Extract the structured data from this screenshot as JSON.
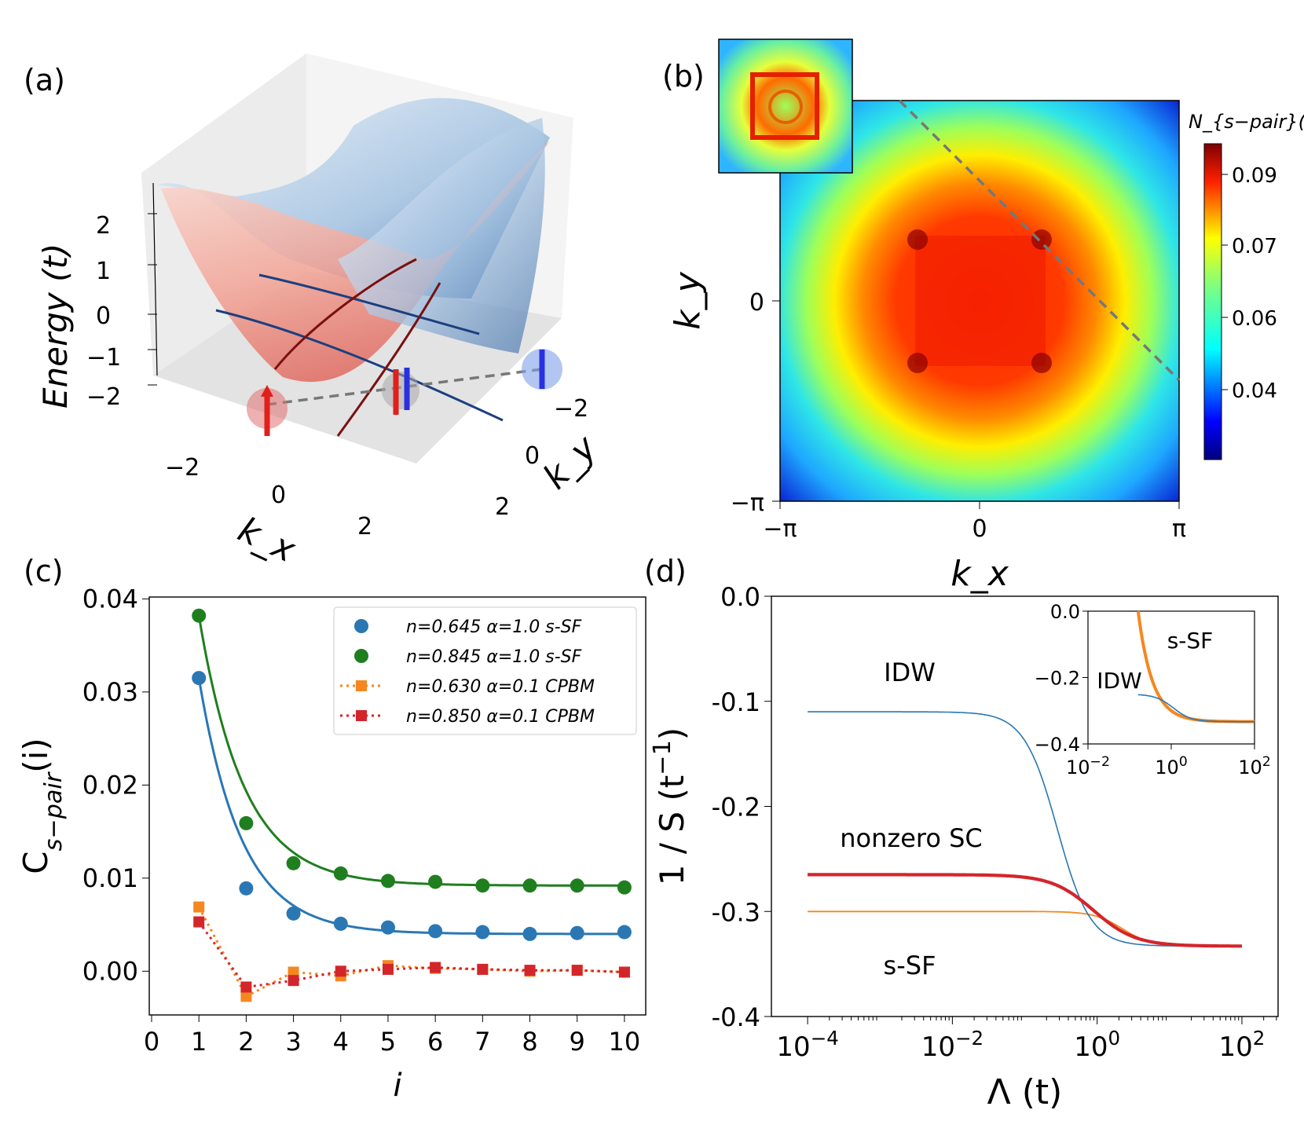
{
  "panels": {
    "a": {
      "label": "(a)",
      "zlabel": "Energy (t)",
      "xlabel": "k_x",
      "ylabel": "k_y",
      "z_ticks": [
        "2",
        "1",
        "0",
        "−1",
        "−2"
      ],
      "x_ticks": [
        "−2",
        "0",
        "2"
      ],
      "y_ticks": [
        "−2",
        "0",
        "2"
      ]
    },
    "b": {
      "label": "(b)",
      "xlabel": "k_x",
      "ylabel": "k_y",
      "x_ticks": [
        "−π",
        "0",
        "π"
      ],
      "y_ticks": [
        "0",
        "−π"
      ],
      "colorbar_label": "N_{s−pair}(k)",
      "colorbar_ticks": [
        "0.09",
        "0.07",
        "0.06",
        "0.04"
      ]
    },
    "c": {
      "label": "(c)"
    },
    "d": {
      "label": "(d)"
    }
  },
  "chart_data": [
    {
      "panel": "c",
      "type": "scatter",
      "xlabel": "i",
      "ylabel": "C_{s−pair}(i)",
      "xlim": [
        -0.05,
        10.45
      ],
      "ylim": [
        -0.0047,
        0.0402
      ],
      "x_ticks": [
        0,
        1,
        2,
        3,
        4,
        5,
        6,
        7,
        8,
        9,
        10
      ],
      "y_ticks": [
        0.0,
        0.01,
        0.02,
        0.03,
        0.04
      ],
      "y_tick_labels": [
        "0.00",
        "0.01",
        "0.02",
        "0.03",
        "0.04"
      ],
      "x": [
        1,
        2,
        3,
        4,
        5,
        6,
        7,
        8,
        9,
        10
      ],
      "series": [
        {
          "name": "n=0.645 α=1.0 s-SF",
          "color": "#2a77b4",
          "marker": "circle",
          "values": [
            0.0315,
            0.0089,
            0.0062,
            0.0051,
            0.0047,
            0.0043,
            0.0042,
            0.004,
            0.0041,
            0.0042
          ],
          "fit": {
            "a": 0.0275,
            "b": 1.1,
            "c": 0.004
          }
        },
        {
          "name": "n=0.845 α=1.0 s-SF",
          "color": "#1f7f1f",
          "marker": "circle",
          "values": [
            0.0382,
            0.0159,
            0.0116,
            0.0105,
            0.0097,
            0.0096,
            0.0092,
            0.0092,
            0.0092,
            0.009
          ],
          "fit": {
            "a": 0.029,
            "b": 1.05,
            "c": 0.0092
          }
        },
        {
          "name": "n=0.630 α=0.1 CPBM",
          "color": "#f5871f",
          "marker": "square",
          "dashed": true,
          "values": [
            0.0069,
            -0.0027,
            -0.0001,
            -0.0005,
            0.0006,
            0.0003,
            0.0002,
            0.0,
            0.0001,
            -0.0001
          ]
        },
        {
          "name": "n=0.850 α=0.1 CPBM",
          "color": "#d3262b",
          "marker": "square",
          "dashed": true,
          "values": [
            0.0053,
            -0.0017,
            -0.001,
            0.0,
            0.0002,
            0.0004,
            0.0002,
            0.0001,
            0.0001,
            -0.0001
          ]
        }
      ],
      "legend": "top-right"
    },
    {
      "panel": "d",
      "type": "line",
      "xscale": "log",
      "xlabel": "Λ (t)",
      "ylabel": "1 / S (t^{−1})",
      "xlim": [
        3.16e-05,
        316
      ],
      "ylim": [
        -0.4,
        0.0
      ],
      "x_tick_labels": [
        "10^{−4}",
        "10^{−2}",
        "10^{0}",
        "10^{2}"
      ],
      "y_tick_labels": [
        "0.0",
        "-0.1",
        "-0.2",
        "-0.3",
        "-0.4"
      ],
      "series": [
        {
          "name": "IDW",
          "color": "#2a77b4",
          "width": 1.6,
          "start": -0.11,
          "end": -0.333,
          "center_log": -0.55,
          "steep": 1.9
        },
        {
          "name": "nonzero SC",
          "color": "#d3262b",
          "width": 4.2,
          "start": -0.265,
          "end": -0.333,
          "center_log": -0.05,
          "steep": 1.5
        },
        {
          "name": "s-SF",
          "color": "#f5871f",
          "width": 1.8,
          "start": -0.3,
          "end": -0.333,
          "center_log": 0.35,
          "steep": 2.2
        }
      ],
      "annotations": [
        {
          "text": "IDW",
          "color": "#2a77b4"
        },
        {
          "text": "nonzero SC",
          "color": "#d3262b"
        },
        {
          "text": "s-SF",
          "color": "#f5871f"
        }
      ],
      "inset": {
        "xlim": [
          0.01,
          100
        ],
        "ylim": [
          -0.4,
          0.0
        ],
        "x_tick_labels": [
          "10^{−2}",
          "10^{0}",
          "10^{2}"
        ],
        "y_tick_labels": [
          "0.0",
          "−0.2",
          "−0.4"
        ],
        "series": [
          {
            "name": "s-SF",
            "color": "#f5871f",
            "width": 4.0,
            "from": 0.16,
            "start": 0.0,
            "end": -0.333,
            "center_log": 0.0,
            "steep": 2.3
          },
          {
            "name": "IDW",
            "color": "#2a77b4",
            "width": 1.6,
            "from": 0.16,
            "start": -0.25,
            "end": -0.333,
            "center_log": 0.05,
            "steep": 2.0
          }
        ],
        "annotations": [
          {
            "text": "s-SF",
            "color": "#f5871f"
          },
          {
            "text": "IDW",
            "color": "#2a77b4"
          }
        ]
      }
    }
  ]
}
